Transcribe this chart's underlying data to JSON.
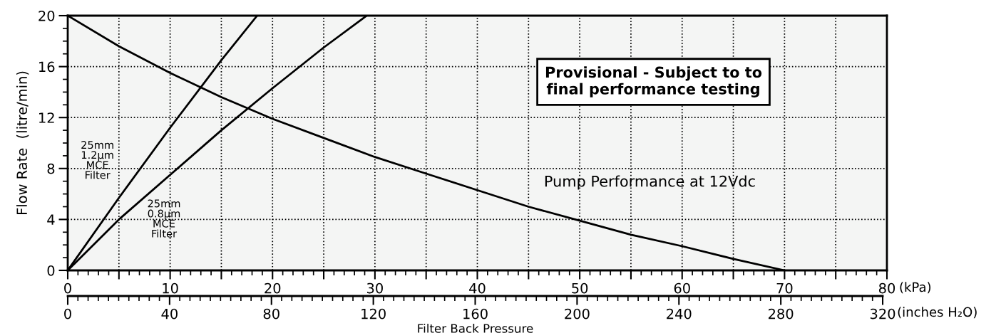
{
  "chart_data": {
    "type": "line",
    "xlabel": "Filter Back Pressure",
    "ylabel": "Flow Rate  (litre/min)",
    "x2label": "(inches H₂O)",
    "annotations": [
      "Provisional - Subject to to\nfinal performance testing",
      "(kPa)"
    ],
    "xlim": [
      0,
      80
    ],
    "ylim": [
      0,
      20
    ],
    "xticks": [
      0,
      {
        "value": 5,
        "label": null
      },
      10,
      {
        "value": 15,
        "label": null
      },
      20,
      {
        "value": 25,
        "label": null
      },
      30,
      {
        "value": 35,
        "label": null
      },
      40,
      {
        "value": 45,
        "label": null
      },
      50,
      {
        "value": 55,
        "label": null
      },
      60,
      {
        "value": 65,
        "label": null
      },
      70,
      {
        "value": 75,
        "label": null
      },
      80
    ],
    "yticks": [
      0,
      4,
      8,
      12,
      16,
      20
    ],
    "x2lim": [
      0,
      320
    ],
    "x2ticks": [
      0,
      40,
      80,
      120,
      160,
      200,
      240,
      280,
      320
    ],
    "grid": true,
    "series": [
      {
        "name": "Pump Performance at 12Vdc",
        "color": "#000000",
        "x": [
          0,
          5,
          10,
          15,
          20,
          25,
          30,
          35,
          40,
          45,
          50,
          55,
          60,
          65,
          70
        ],
        "values": [
          20,
          17.6,
          15.5,
          13.6,
          11.9,
          10.4,
          8.9,
          7.6,
          6.3,
          5.0,
          3.9,
          2.8,
          1.9,
          0.9,
          0
        ]
      },
      {
        "name": "25mm\n1.2µm\nMCE\nFilter",
        "color": "#000000",
        "x": [
          0,
          5,
          10,
          15,
          18.5
        ],
        "values": [
          0,
          5.7,
          11.2,
          16.5,
          20
        ]
      },
      {
        "name": "25mm\n0.8µm\nMCE\nFilter",
        "color": "#000000",
        "x": [
          0,
          5,
          10,
          15,
          20,
          25,
          29.2
        ],
        "values": [
          0,
          4.0,
          7.5,
          11.0,
          14.3,
          17.5,
          20
        ]
      }
    ]
  }
}
